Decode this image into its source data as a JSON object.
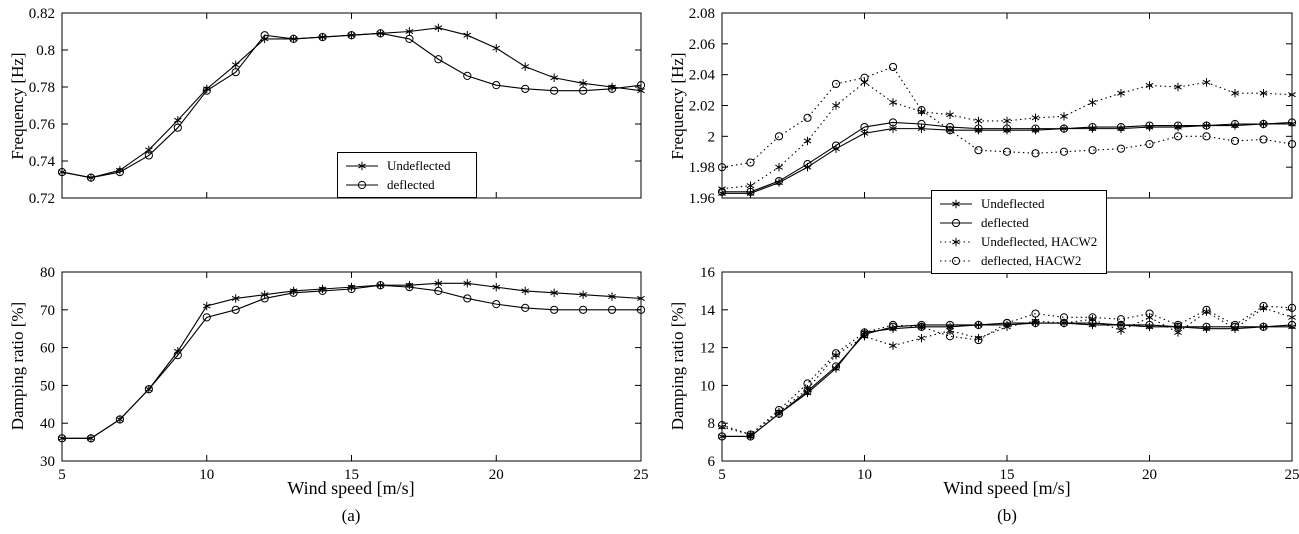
{
  "figure": {
    "background": "#ffffff",
    "line_color": "#000000",
    "xlabel": "Wind speed [m/s]",
    "captions": {
      "a": "(a)",
      "b": "(b)"
    }
  },
  "chart_data": [
    {
      "id": "a-top",
      "type": "line",
      "title": "",
      "xlabel": "",
      "ylabel": "Frequency [Hz]",
      "xlim": [
        5,
        25
      ],
      "ylim": [
        0.72,
        0.82
      ],
      "xticks": [
        5,
        10,
        15,
        20,
        25
      ],
      "xticklabels": [
        "5",
        "10",
        "15",
        "20",
        "25"
      ],
      "show_xticklabels": false,
      "yticks": [
        0.72,
        0.74,
        0.76,
        0.78,
        0.8,
        0.82
      ],
      "yticklabels": [
        "0.72",
        "0.74",
        "0.76",
        "0.78",
        "0.8",
        "0.82"
      ],
      "grid": false,
      "legend_position": "inside-bottom-center",
      "x": [
        5,
        6,
        7,
        8,
        9,
        10,
        11,
        12,
        13,
        14,
        15,
        16,
        17,
        18,
        19,
        20,
        21,
        22,
        23,
        24,
        25
      ],
      "series": [
        {
          "name": "Undeflected",
          "marker": "star",
          "line": "solid",
          "values": [
            0.734,
            0.731,
            0.735,
            0.746,
            0.762,
            0.779,
            0.792,
            0.806,
            0.806,
            0.807,
            0.808,
            0.809,
            0.81,
            0.812,
            0.808,
            0.801,
            0.791,
            0.785,
            0.782,
            0.78,
            0.778
          ]
        },
        {
          "name": "deflected",
          "marker": "circle",
          "line": "solid",
          "values": [
            0.734,
            0.731,
            0.734,
            0.743,
            0.758,
            0.778,
            0.788,
            0.808,
            0.806,
            0.807,
            0.808,
            0.809,
            0.806,
            0.795,
            0.786,
            0.781,
            0.779,
            0.778,
            0.778,
            0.779,
            0.781
          ]
        }
      ]
    },
    {
      "id": "a-bottom",
      "type": "line",
      "title": "",
      "xlabel": "Wind speed [m/s]",
      "ylabel": "Damping ratio [%]",
      "xlim": [
        5,
        25
      ],
      "ylim": [
        30,
        80
      ],
      "xticks": [
        5,
        10,
        15,
        20,
        25
      ],
      "xticklabels": [
        "5",
        "10",
        "15",
        "20",
        "25"
      ],
      "show_xticklabels": true,
      "yticks": [
        30,
        40,
        50,
        60,
        70,
        80
      ],
      "yticklabels": [
        "30",
        "40",
        "50",
        "60",
        "70",
        "80"
      ],
      "grid": false,
      "x": [
        5,
        6,
        7,
        8,
        9,
        10,
        11,
        12,
        13,
        14,
        15,
        16,
        17,
        18,
        19,
        20,
        21,
        22,
        23,
        24,
        25
      ],
      "series": [
        {
          "name": "Undeflected",
          "marker": "star",
          "line": "solid",
          "values": [
            36,
            36,
            41,
            49,
            59,
            71,
            73,
            74,
            75,
            75.5,
            76,
            76.5,
            76.5,
            77,
            77,
            76,
            75,
            74.5,
            74,
            73.5,
            73
          ]
        },
        {
          "name": "deflected",
          "marker": "circle",
          "line": "solid",
          "values": [
            36,
            36,
            41,
            49,
            58,
            68,
            70,
            73,
            74.5,
            75,
            75.5,
            76.5,
            76,
            75,
            73,
            71.5,
            70.5,
            70,
            70,
            70,
            70
          ]
        }
      ]
    },
    {
      "id": "b-top",
      "type": "line",
      "title": "",
      "xlabel": "",
      "ylabel": "Frequency [Hz]",
      "xlim": [
        5,
        25
      ],
      "ylim": [
        1.96,
        2.08
      ],
      "xticks": [
        5,
        10,
        15,
        20,
        25
      ],
      "xticklabels": [
        "5",
        "10",
        "15",
        "20",
        "25"
      ],
      "show_xticklabels": false,
      "yticks": [
        1.96,
        1.98,
        2,
        2.02,
        2.04,
        2.06,
        2.08
      ],
      "yticklabels": [
        "1.96",
        "1.98",
        "2",
        "2.02",
        "2.04",
        "2.06",
        "2.08"
      ],
      "grid": false,
      "legend_position": "below-left",
      "x": [
        5,
        6,
        7,
        8,
        9,
        10,
        11,
        12,
        13,
        14,
        15,
        16,
        17,
        18,
        19,
        20,
        21,
        22,
        23,
        24,
        25
      ],
      "series": [
        {
          "name": "Undeflected",
          "marker": "star",
          "line": "solid",
          "values": [
            1.963,
            1.963,
            1.97,
            1.98,
            1.992,
            2.002,
            2.005,
            2.005,
            2.004,
            2.004,
            2.004,
            2.004,
            2.005,
            2.005,
            2.005,
            2.006,
            2.006,
            2.007,
            2.007,
            2.008,
            2.008
          ]
        },
        {
          "name": "deflected",
          "marker": "circle",
          "line": "solid",
          "values": [
            1.964,
            1.964,
            1.971,
            1.982,
            1.994,
            2.006,
            2.009,
            2.008,
            2.006,
            2.005,
            2.005,
            2.005,
            2.005,
            2.006,
            2.006,
            2.007,
            2.007,
            2.007,
            2.008,
            2.008,
            2.009
          ]
        },
        {
          "name": "Undeflected, HACW2",
          "marker": "star",
          "line": "dotted",
          "values": [
            1.966,
            1.968,
            1.98,
            1.997,
            2.02,
            2.035,
            2.022,
            2.016,
            2.014,
            2.01,
            2.01,
            2.012,
            2.013,
            2.022,
            2.028,
            2.033,
            2.032,
            2.035,
            2.028,
            2.028,
            2.027
          ]
        },
        {
          "name": "deflected, HACW2",
          "marker": "circle",
          "line": "dotted",
          "values": [
            1.98,
            1.983,
            2.0,
            2.012,
            2.034,
            2.038,
            2.045,
            2.017,
            2.004,
            1.991,
            1.99,
            1.989,
            1.99,
            1.991,
            1.992,
            1.995,
            2.0,
            2.0,
            1.997,
            1.998,
            1.995
          ]
        }
      ]
    },
    {
      "id": "b-bottom",
      "type": "line",
      "title": "",
      "xlabel": "Wind speed [m/s]",
      "ylabel": "Damping ratio [%]",
      "xlim": [
        5,
        25
      ],
      "ylim": [
        6,
        16
      ],
      "xticks": [
        5,
        10,
        15,
        20,
        25
      ],
      "xticklabels": [
        "5",
        "10",
        "15",
        "20",
        "25"
      ],
      "show_xticklabels": true,
      "yticks": [
        6,
        8,
        10,
        12,
        14,
        16
      ],
      "yticklabels": [
        "6",
        "8",
        "10",
        "12",
        "14",
        "16"
      ],
      "grid": false,
      "x": [
        5,
        6,
        7,
        8,
        9,
        10,
        11,
        12,
        13,
        14,
        15,
        16,
        17,
        18,
        19,
        20,
        21,
        22,
        23,
        24,
        25
      ],
      "series": [
        {
          "name": "Undeflected",
          "marker": "star",
          "line": "solid",
          "values": [
            7.3,
            7.3,
            8.5,
            9.6,
            10.9,
            12.8,
            13.0,
            13.1,
            13.1,
            13.2,
            13.2,
            13.3,
            13.3,
            13.2,
            13.2,
            13.1,
            13.1,
            13.0,
            13.0,
            13.1,
            13.1
          ]
        },
        {
          "name": "deflected",
          "marker": "circle",
          "line": "solid",
          "values": [
            7.3,
            7.3,
            8.5,
            9.7,
            11.0,
            12.7,
            13.1,
            13.2,
            13.2,
            13.2,
            13.3,
            13.3,
            13.3,
            13.3,
            13.2,
            13.2,
            13.1,
            13.1,
            13.1,
            13.1,
            13.2
          ]
        },
        {
          "name": "Undeflected, HACW2",
          "marker": "star",
          "line": "dotted",
          "values": [
            7.8,
            7.4,
            8.6,
            9.8,
            11.6,
            12.6,
            12.1,
            12.5,
            12.9,
            12.5,
            13.1,
            13.4,
            13.3,
            13.5,
            12.9,
            13.6,
            12.8,
            13.9,
            13.0,
            14.1,
            13.6
          ]
        },
        {
          "name": "deflected, HACW2",
          "marker": "circle",
          "line": "dotted",
          "values": [
            7.9,
            7.4,
            8.7,
            10.1,
            11.7,
            12.8,
            13.2,
            13.1,
            12.6,
            12.4,
            13.3,
            13.8,
            13.6,
            13.6,
            13.5,
            13.8,
            13.2,
            14.0,
            13.2,
            14.2,
            14.1
          ]
        }
      ]
    }
  ]
}
